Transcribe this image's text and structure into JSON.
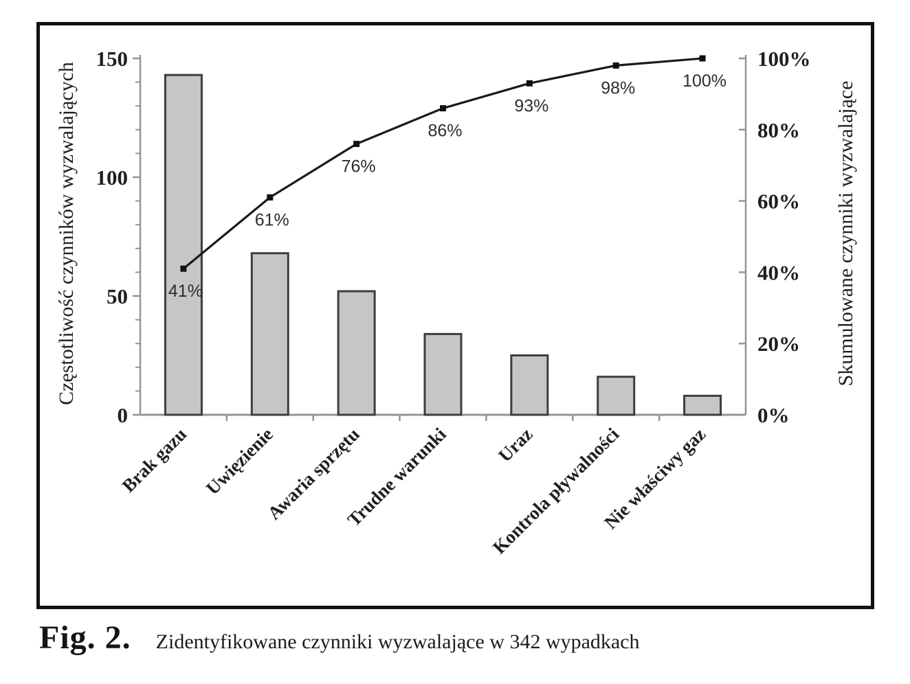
{
  "figure": {
    "caption_label": "Fig. 2.",
    "caption_text": "Zidentyfikowane czynniki wyzwalające w 342 wypadkach"
  },
  "chart_data": {
    "type": "bar",
    "subtype": "pareto-bar-plus-cumulative-line",
    "categories": [
      "Brak gazu",
      "Uwięzienie",
      "Awaria sprzętu",
      "Trudne warunki",
      "Uraz",
      "Kontrola pływalności",
      "Nie właściwy gaz"
    ],
    "series": [
      {
        "name": "Częstotliwość czynników wyzwalających",
        "type": "bar",
        "values": [
          143,
          68,
          52,
          34,
          25,
          16,
          8
        ]
      },
      {
        "name": "Skumulowane czynniki wyzwalające",
        "type": "line",
        "values": [
          41,
          61,
          76,
          86,
          93,
          98,
          100
        ],
        "point_labels": [
          "41%",
          "61%",
          "76%",
          "86%",
          "93%",
          "98%",
          "100%"
        ]
      }
    ],
    "ylabel_left": "Częstotliwość czynników wyzwalających",
    "ylabel_right": "Skumulowane czynniki wyzwalające",
    "ylim_left": [
      0,
      150
    ],
    "ylim_right": [
      0,
      100
    ],
    "yticks_left": {
      "major": [
        0,
        50,
        100,
        150
      ],
      "labels": [
        "0",
        "50",
        "100",
        "150"
      ],
      "minor_step": 10
    },
    "yticks_right": {
      "major": [
        0,
        20,
        40,
        60,
        80,
        100
      ],
      "labels": [
        "0%",
        "20%",
        "40%",
        "60%",
        "80%",
        "100%"
      ]
    },
    "grid": false,
    "legend": "none",
    "colors": {
      "bar_fill": "#c6c6c6",
      "bar_stroke": "#3d3d3d",
      "line": "#1a1a1a",
      "marker": "#111111",
      "axis": "#949494",
      "tick_label": "#1f1f1f",
      "percent_label": "#2e2e2e"
    }
  }
}
